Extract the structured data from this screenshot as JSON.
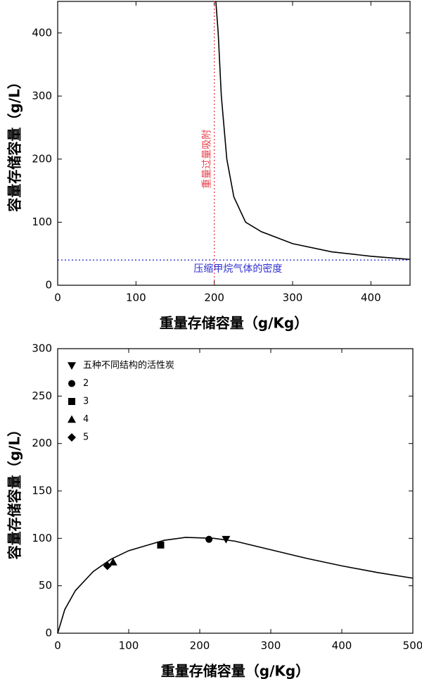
{
  "chart_data": [
    {
      "type": "line",
      "x_label": "重量存储容量（g/Kg）",
      "y_label": "容量存储容量（g/L）",
      "xlim": [
        0,
        450
      ],
      "xticks": [
        0,
        100,
        200,
        300,
        400
      ],
      "ylim": [
        0,
        450
      ],
      "yticks": [
        0,
        100,
        200,
        300,
        400
      ],
      "x": [
        202,
        205,
        209,
        216,
        225,
        240,
        260,
        300,
        350,
        400,
        450
      ],
      "series": [
        {
          "color": "#000000",
          "values": [
            450,
            400,
            300,
            200,
            140,
            100,
            85,
            66,
            53,
            46,
            41
          ]
        }
      ],
      "vline": {
        "x": 200,
        "label": "重量过量吸附",
        "color": "#e8404a"
      },
      "hline": {
        "y": 40,
        "label": "压缩甲烷气体的密度",
        "color": "#3030d0"
      }
    },
    {
      "type": "scatter",
      "x_label": "重量存储容量（g/Kg）",
      "y_label": "容量存储容量（g/L）",
      "xlim": [
        0,
        500
      ],
      "xticks": [
        0,
        100,
        200,
        300,
        400,
        500
      ],
      "ylim": [
        0,
        300
      ],
      "yticks": [
        0,
        50,
        100,
        150,
        200,
        250,
        300
      ],
      "series": [
        {
          "name": "五种不同结构的活性炭",
          "marker": "triangle-down",
          "color": "#000000",
          "x": [
            237
          ],
          "values": [
            99
          ]
        },
        {
          "name": "2",
          "marker": "circle",
          "color": "#000000",
          "x": [
            213
          ],
          "values": [
            99
          ]
        },
        {
          "name": "3",
          "marker": "square",
          "color": "#000000",
          "x": [
            145
          ],
          "values": [
            93
          ]
        },
        {
          "name": "4",
          "marker": "triangle-up",
          "color": "#000000",
          "x": [
            78
          ],
          "values": [
            75
          ]
        },
        {
          "name": "5",
          "marker": "diamond",
          "color": "#000000",
          "x": [
            70
          ],
          "values": [
            71
          ]
        }
      ],
      "fit": {
        "color": "#000000",
        "x": [
          0,
          10,
          25,
          50,
          75,
          100,
          150,
          180,
          220,
          250,
          300,
          350,
          400,
          450,
          500
        ],
        "values": [
          0,
          25,
          45,
          65,
          78,
          87,
          98,
          101,
          100,
          97,
          88,
          79,
          71,
          64,
          58
        ]
      }
    }
  ]
}
